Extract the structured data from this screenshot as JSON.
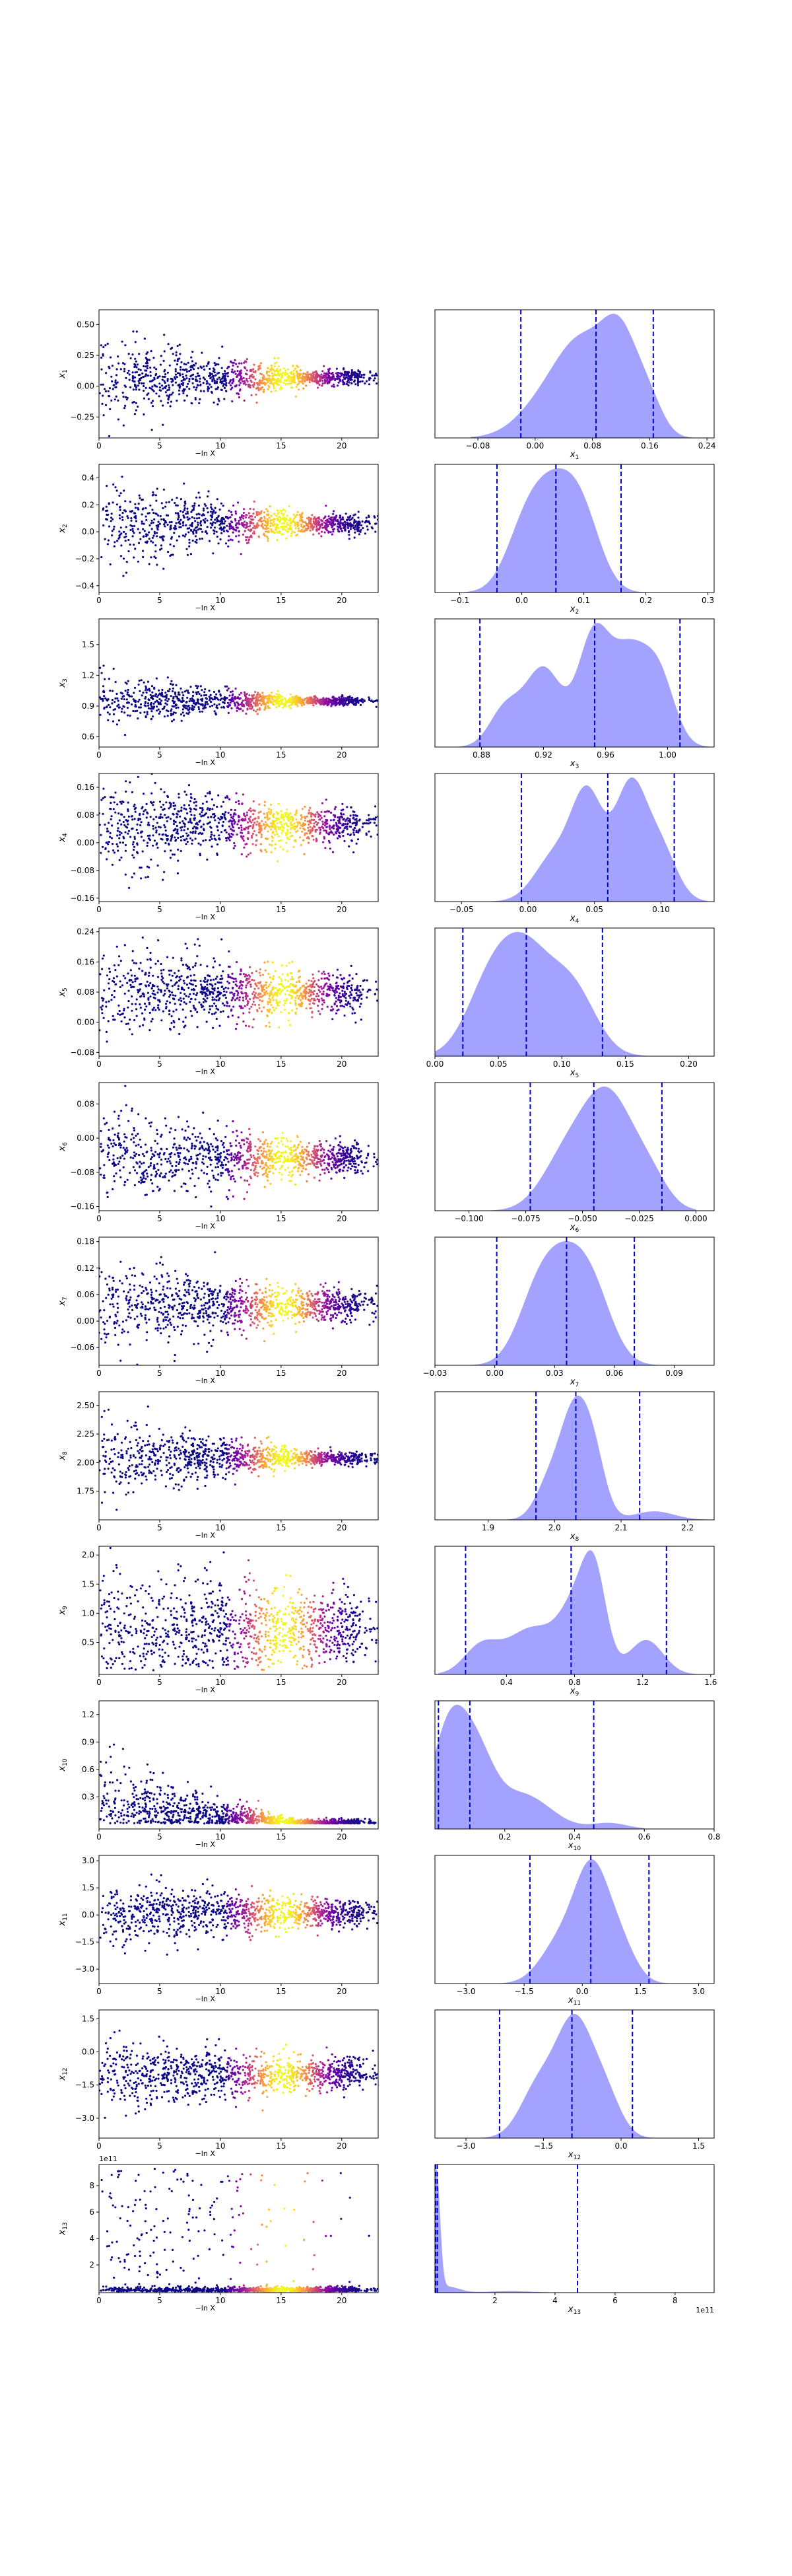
{
  "figure": {
    "background": "#ffffff",
    "colors": {
      "hist_fill": "#6666ff",
      "hist_fill_alpha": 0.6,
      "quantile_line": "#0000cc",
      "scatter_low": "#0d0887",
      "scatter_mid": "#cc4778",
      "scatter_high": "#f0f921",
      "axes": "#000000"
    }
  },
  "chart_data": [
    {
      "type": "scatter",
      "param": "x_1",
      "ylabel_sym": "x",
      "ylabel_sub": "1",
      "xlabel": "−ln X",
      "xlim": [
        0,
        23
      ],
      "ylim": [
        -0.42,
        0.62
      ],
      "xticks": [
        0,
        5,
        10,
        15,
        20
      ],
      "yticks": [
        -0.25,
        0.0,
        0.25,
        0.5
      ],
      "ytick_labels": [
        "−0.25",
        "0.00",
        "0.25",
        "0.50"
      ],
      "center": 0.07,
      "spread_start": 0.18,
      "spread_end": 0.03,
      "tail": "none"
    },
    {
      "type": "area",
      "param": "x_1",
      "xlabel_sym": "x",
      "xlabel_sub": "1",
      "xlim": [
        -0.14,
        0.25
      ],
      "xticks": [
        -0.08,
        0.0,
        0.08,
        0.16,
        0.24
      ],
      "xtick_labels": [
        "−0.08",
        "0.00",
        "0.08",
        "0.16",
        "0.24"
      ],
      "quantiles": [
        -0.02,
        0.085,
        0.165
      ],
      "peaks": [
        [
          0.07,
          0.9,
          0.035
        ],
        [
          0.12,
          1.0,
          0.025
        ],
        [
          0.02,
          0.45,
          0.04
        ],
        [
          0.16,
          0.35,
          0.02
        ]
      ],
      "support": [
        -0.09,
        0.23
      ]
    },
    {
      "type": "scatter",
      "param": "x_2",
      "ylabel_sym": "x",
      "ylabel_sub": "2",
      "xlabel": "−ln X",
      "xlim": [
        0,
        23
      ],
      "ylim": [
        -0.45,
        0.5
      ],
      "xticks": [
        0,
        5,
        10,
        15,
        20
      ],
      "yticks": [
        -0.4,
        -0.2,
        0.0,
        0.2,
        0.4
      ],
      "ytick_labels": [
        "−0.4",
        "−0.2",
        "0.0",
        "0.2",
        "0.4"
      ],
      "center": 0.06,
      "spread_start": 0.16,
      "spread_end": 0.035,
      "tail": "none"
    },
    {
      "type": "area",
      "param": "x_2",
      "xlabel_sym": "x",
      "xlabel_sub": "2",
      "xlim": [
        -0.14,
        0.31
      ],
      "xticks": [
        -0.1,
        0.0,
        0.1,
        0.2,
        0.3
      ],
      "xtick_labels": [
        "−0.1",
        "0.0",
        "0.1",
        "0.2",
        "0.3"
      ],
      "quantiles": [
        -0.04,
        0.055,
        0.16
      ],
      "peaks": [
        [
          0.05,
          1.0,
          0.04
        ],
        [
          0.1,
          0.5,
          0.03
        ],
        [
          0.0,
          0.35,
          0.03
        ]
      ],
      "support": [
        -0.1,
        0.28
      ]
    },
    {
      "type": "scatter",
      "param": "x_3",
      "ylabel_sym": "x",
      "ylabel_sub": "3",
      "xlabel": "−ln X",
      "xlim": [
        0,
        23
      ],
      "ylim": [
        0.5,
        1.75
      ],
      "xticks": [
        0,
        5,
        10,
        15,
        20
      ],
      "yticks": [
        0.6,
        0.9,
        1.2,
        1.5
      ],
      "ytick_labels": [
        "0.6",
        "0.9",
        "1.2",
        "1.5"
      ],
      "center": 0.95,
      "spread_start": 0.12,
      "spread_end": 0.02,
      "tail": "none"
    },
    {
      "type": "area",
      "param": "x_3",
      "xlabel_sym": "x",
      "xlabel_sub": "3",
      "xlim": [
        0.85,
        1.03
      ],
      "xticks": [
        0.88,
        0.92,
        0.96,
        1.0
      ],
      "xtick_labels": [
        "0.88",
        "0.92",
        "0.96",
        "1.00"
      ],
      "quantiles": [
        0.879,
        0.953,
        1.008
      ],
      "peaks": [
        [
          0.92,
          0.75,
          0.012
        ],
        [
          0.952,
          1.0,
          0.01
        ],
        [
          0.975,
          0.88,
          0.012
        ],
        [
          0.995,
          0.6,
          0.01
        ],
        [
          0.895,
          0.35,
          0.01
        ]
      ],
      "support": [
        0.86,
        1.03
      ]
    },
    {
      "type": "scatter",
      "param": "x_4",
      "ylabel_sym": "x",
      "ylabel_sub": "4",
      "xlabel": "−ln X",
      "xlim": [
        0,
        23
      ],
      "ylim": [
        -0.17,
        0.2
      ],
      "xticks": [
        0,
        5,
        10,
        15,
        20
      ],
      "yticks": [
        -0.16,
        -0.08,
        0.0,
        0.08,
        0.16
      ],
      "ytick_labels": [
        "−0.16",
        "−0.08",
        "0.00",
        "0.08",
        "0.16"
      ],
      "center": 0.05,
      "spread_start": 0.07,
      "spread_end": 0.025,
      "tail": "none"
    },
    {
      "type": "area",
      "param": "x_4",
      "xlabel_sym": "x",
      "xlabel_sub": "4",
      "xlim": [
        -0.07,
        0.14
      ],
      "xticks": [
        -0.05,
        0.0,
        0.05,
        0.1
      ],
      "xtick_labels": [
        "−0.05",
        "0.00",
        "0.05",
        "0.10"
      ],
      "quantiles": [
        -0.005,
        0.06,
        0.11
      ],
      "peaks": [
        [
          0.045,
          0.9,
          0.012
        ],
        [
          0.077,
          1.0,
          0.012
        ],
        [
          0.02,
          0.4,
          0.015
        ],
        [
          0.1,
          0.45,
          0.012
        ]
      ],
      "support": [
        -0.055,
        0.135
      ]
    },
    {
      "type": "scatter",
      "param": "x_5",
      "ylabel_sym": "x",
      "ylabel_sub": "5",
      "xlabel": "−ln X",
      "xlim": [
        0,
        23
      ],
      "ylim": [
        -0.09,
        0.25
      ],
      "xticks": [
        0,
        5,
        10,
        15,
        20
      ],
      "yticks": [
        -0.08,
        0.0,
        0.08,
        0.16,
        0.24
      ],
      "ytick_labels": [
        "−0.08",
        "0.00",
        "0.08",
        "0.16",
        "0.24"
      ],
      "center": 0.08,
      "spread_start": 0.065,
      "spread_end": 0.025,
      "tail": "none"
    },
    {
      "type": "area",
      "param": "x_5",
      "xlabel_sym": "x",
      "xlabel_sub": "5",
      "xlim": [
        0.0,
        0.22
      ],
      "xticks": [
        0.0,
        0.05,
        0.1,
        0.15,
        0.2
      ],
      "xtick_labels": [
        "0.00",
        "0.05",
        "0.10",
        "0.15",
        "0.20"
      ],
      "quantiles": [
        0.022,
        0.072,
        0.132
      ],
      "peaks": [
        [
          0.07,
          1.0,
          0.022
        ],
        [
          0.11,
          0.55,
          0.018
        ],
        [
          0.04,
          0.45,
          0.018
        ]
      ],
      "support": [
        0.0,
        0.2
      ]
    },
    {
      "type": "scatter",
      "param": "x_6",
      "ylabel_sym": "x",
      "ylabel_sub": "6",
      "xlabel": "−ln X",
      "xlim": [
        0,
        23
      ],
      "ylim": [
        -0.17,
        0.13
      ],
      "xticks": [
        0,
        5,
        10,
        15,
        20
      ],
      "yticks": [
        -0.16,
        -0.08,
        0.0,
        0.08
      ],
      "ytick_labels": [
        "−0.16",
        "−0.08",
        "0.00",
        "0.08"
      ],
      "center": -0.045,
      "spread_start": 0.055,
      "spread_end": 0.02,
      "tail": "none"
    },
    {
      "type": "area",
      "param": "x_6",
      "xlabel_sym": "x",
      "xlabel_sub": "6",
      "xlim": [
        -0.115,
        0.008
      ],
      "xticks": [
        -0.1,
        -0.075,
        -0.05,
        -0.025,
        0.0
      ],
      "xtick_labels": [
        "−0.100",
        "−0.075",
        "−0.050",
        "−0.025",
        "0.000"
      ],
      "quantiles": [
        -0.073,
        -0.045,
        -0.015
      ],
      "peaks": [
        [
          -0.045,
          0.95,
          0.011
        ],
        [
          -0.035,
          0.9,
          0.01
        ],
        [
          -0.06,
          0.5,
          0.01
        ],
        [
          -0.02,
          0.4,
          0.008
        ]
      ],
      "support": [
        -0.1,
        0.0
      ]
    },
    {
      "type": "scatter",
      "param": "x_7",
      "ylabel_sym": "x",
      "ylabel_sub": "7",
      "xlabel": "−ln X",
      "xlim": [
        0,
        23
      ],
      "ylim": [
        -0.1,
        0.19
      ],
      "xticks": [
        0,
        5,
        10,
        15,
        20
      ],
      "yticks": [
        -0.06,
        0.0,
        0.06,
        0.12,
        0.18
      ],
      "ytick_labels": [
        "−0.06",
        "0.00",
        "0.06",
        "0.12",
        "0.18"
      ],
      "center": 0.035,
      "spread_start": 0.05,
      "spread_end": 0.018,
      "tail": "none"
    },
    {
      "type": "area",
      "param": "x_7",
      "xlabel_sym": "x",
      "xlabel_sub": "7",
      "xlim": [
        -0.03,
        0.11
      ],
      "xticks": [
        -0.03,
        0.0,
        0.03,
        0.06,
        0.09
      ],
      "xtick_labels": [
        "−0.03",
        "0.00",
        "0.03",
        "0.06",
        "0.09"
      ],
      "quantiles": [
        0.001,
        0.036,
        0.07
      ],
      "peaks": [
        [
          0.035,
          1.0,
          0.012
        ],
        [
          0.02,
          0.5,
          0.01
        ],
        [
          0.05,
          0.55,
          0.01
        ]
      ],
      "support": [
        -0.015,
        0.09
      ]
    },
    {
      "type": "scatter",
      "param": "x_8",
      "ylabel_sym": "x",
      "ylabel_sub": "8",
      "xlabel": "−ln X",
      "xlim": [
        0,
        23
      ],
      "ylim": [
        1.5,
        2.62
      ],
      "xticks": [
        0,
        5,
        10,
        15,
        20
      ],
      "yticks": [
        1.75,
        2.0,
        2.25,
        2.5
      ],
      "ytick_labels": [
        "1.75",
        "2.00",
        "2.25",
        "2.50"
      ],
      "center": 2.04,
      "spread_start": 0.17,
      "spread_end": 0.03,
      "tail": "none"
    },
    {
      "type": "area",
      "param": "x_8",
      "xlabel_sym": "x",
      "xlabel_sub": "8",
      "xlim": [
        1.82,
        2.24
      ],
      "xticks": [
        1.9,
        2.0,
        2.1,
        2.2
      ],
      "xtick_labels": [
        "1.9",
        "2.0",
        "2.1",
        "2.2"
      ],
      "quantiles": [
        1.972,
        2.032,
        2.128
      ],
      "peaks": [
        [
          2.03,
          1.0,
          0.022
        ],
        [
          2.06,
          0.45,
          0.018
        ],
        [
          1.99,
          0.3,
          0.02
        ],
        [
          2.15,
          0.08,
          0.03
        ]
      ],
      "support": [
        1.93,
        2.24
      ]
    },
    {
      "type": "scatter",
      "param": "x_9",
      "ylabel_sym": "x",
      "ylabel_sub": "9",
      "xlabel": "−ln X",
      "xlim": [
        0,
        23
      ],
      "ylim": [
        -0.05,
        2.15
      ],
      "xticks": [
        0,
        5,
        10,
        15,
        20
      ],
      "yticks": [
        0.5,
        1.0,
        1.5,
        2.0
      ],
      "ytick_labels": [
        "0.5",
        "1.0",
        "1.5",
        "2.0"
      ],
      "center": 0.75,
      "spread_start": 0.5,
      "spread_end": 0.3,
      "tail": "pos"
    },
    {
      "type": "area",
      "param": "x_9",
      "xlabel_sym": "x",
      "xlabel_sub": "9",
      "xlim": [
        -0.02,
        1.62
      ],
      "xticks": [
        0.4,
        0.8,
        1.2,
        1.6
      ],
      "xtick_labels": [
        "0.4",
        "0.8",
        "1.2",
        "1.6"
      ],
      "quantiles": [
        0.16,
        0.78,
        1.34
      ],
      "peaks": [
        [
          0.55,
          0.6,
          0.15
        ],
        [
          0.82,
          0.85,
          0.1
        ],
        [
          0.92,
          1.0,
          0.07
        ],
        [
          1.22,
          0.45,
          0.1
        ],
        [
          0.25,
          0.35,
          0.1
        ]
      ],
      "support": [
        0.0,
        1.6
      ]
    },
    {
      "type": "scatter",
      "param": "x_10",
      "ylabel_sym": "x",
      "ylabel_sub": "10",
      "xlabel": "−ln X",
      "xlim": [
        0,
        23
      ],
      "ylim": [
        -0.05,
        1.35
      ],
      "xticks": [
        0,
        5,
        10,
        15,
        20
      ],
      "yticks": [
        0.3,
        0.6,
        0.9,
        1.2
      ],
      "ytick_labels": [
        "0.3",
        "0.6",
        "0.9",
        "1.2"
      ],
      "center": 0.25,
      "spread_start": 0.4,
      "spread_end": 0.08,
      "tail": "decay"
    },
    {
      "type": "area",
      "param": "x_10",
      "xlabel_sym": "x",
      "xlabel_sub": "10",
      "xlim": [
        0.0,
        0.8
      ],
      "xticks": [
        0.2,
        0.4,
        0.6,
        0.8
      ],
      "xtick_labels": [
        "0.2",
        "0.4",
        "0.6",
        "0.8"
      ],
      "quantiles": [
        0.01,
        0.1,
        0.455
      ],
      "peaks": [
        [
          0.04,
          1.0,
          0.05
        ],
        [
          0.12,
          0.65,
          0.05
        ],
        [
          0.25,
          0.35,
          0.08
        ],
        [
          0.5,
          0.06,
          0.05
        ]
      ],
      "support": [
        0.0,
        0.6
      ]
    },
    {
      "type": "scatter",
      "param": "x_11",
      "ylabel_sym": "x",
      "ylabel_sub": "11",
      "xlabel": "−ln X",
      "xlim": [
        0,
        23
      ],
      "ylim": [
        -3.8,
        3.3
      ],
      "xticks": [
        0,
        5,
        10,
        15,
        20
      ],
      "yticks": [
        -3.0,
        -1.5,
        0.0,
        1.5,
        3.0
      ],
      "ytick_labels": [
        "−3.0",
        "−1.5",
        "0.0",
        "1.5",
        "3.0"
      ],
      "center": 0.1,
      "spread_start": 0.9,
      "spread_end": 0.4,
      "tail": "none"
    },
    {
      "type": "area",
      "param": "x_11",
      "xlabel_sym": "x",
      "xlabel_sub": "11",
      "xlim": [
        -3.8,
        3.4
      ],
      "xticks": [
        -3.0,
        -1.5,
        0.0,
        1.5,
        3.0
      ],
      "xtick_labels": [
        "−3.0",
        "−1.5",
        "0.0",
        "1.5",
        "3.0"
      ],
      "quantiles": [
        -1.35,
        0.22,
        1.72
      ],
      "peaks": [
        [
          0.25,
          1.0,
          0.45
        ],
        [
          -0.6,
          0.35,
          0.5
        ],
        [
          1.0,
          0.3,
          0.4
        ]
      ],
      "support": [
        -3.5,
        3.3
      ]
    },
    {
      "type": "scatter",
      "param": "x_12",
      "ylabel_sym": "x",
      "ylabel_sub": "12",
      "xlabel": "−ln X",
      "xlim": [
        0,
        23
      ],
      "ylim": [
        -3.9,
        1.9
      ],
      "xticks": [
        0,
        5,
        10,
        15,
        20
      ],
      "yticks": [
        -3.0,
        -1.5,
        0.0,
        1.5
      ],
      "ytick_labels": [
        "−3.0",
        "−1.5",
        "0.0",
        "1.5"
      ],
      "center": -1.0,
      "spread_start": 0.8,
      "spread_end": 0.35,
      "tail": "none"
    },
    {
      "type": "area",
      "param": "x_12",
      "xlabel_sym": "x",
      "xlabel_sub": "12",
      "xlim": [
        -3.6,
        1.8
      ],
      "xticks": [
        -3.0,
        -1.5,
        0.0,
        1.5
      ],
      "xtick_labels": [
        "−3.0",
        "−1.5",
        "0.0",
        "1.5"
      ],
      "quantiles": [
        -2.35,
        -0.95,
        0.22
      ],
      "peaks": [
        [
          -0.9,
          1.0,
          0.35
        ],
        [
          -1.6,
          0.45,
          0.35
        ],
        [
          -0.3,
          0.35,
          0.3
        ]
      ],
      "support": [
        -3.4,
        1.6
      ]
    },
    {
      "type": "scatter",
      "param": "x_13",
      "ylabel_sym": "x",
      "ylabel_sub": "13",
      "xlabel": "−ln X",
      "xlim": [
        0,
        23
      ],
      "ylim": [
        -0.1,
        9.6
      ],
      "xticks": [
        0,
        5,
        10,
        15,
        20
      ],
      "yticks": [
        2,
        4,
        6,
        8
      ],
      "ytick_labels": [
        "2",
        "4",
        "6",
        "8"
      ],
      "offset_text": "1e11",
      "center": 0.05,
      "spread_start": 2.5,
      "spread_end": 0.05,
      "tail": "sparse"
    },
    {
      "type": "area",
      "param": "x_13",
      "xlabel_sym": "x",
      "xlabel_sub": "13",
      "xlim": [
        0.0,
        9.3
      ],
      "xticks": [
        2,
        4,
        6,
        8
      ],
      "xtick_labels": [
        "2",
        "4",
        "6",
        "8"
      ],
      "offset_text": "1e11",
      "quantiles": [
        0.02,
        0.08,
        4.75
      ],
      "peaks": [
        [
          0.05,
          1.0,
          0.12
        ],
        [
          0.4,
          0.05,
          0.4
        ],
        [
          2.5,
          0.012,
          0.8
        ]
      ],
      "support": [
        0.0,
        9.3
      ]
    }
  ]
}
